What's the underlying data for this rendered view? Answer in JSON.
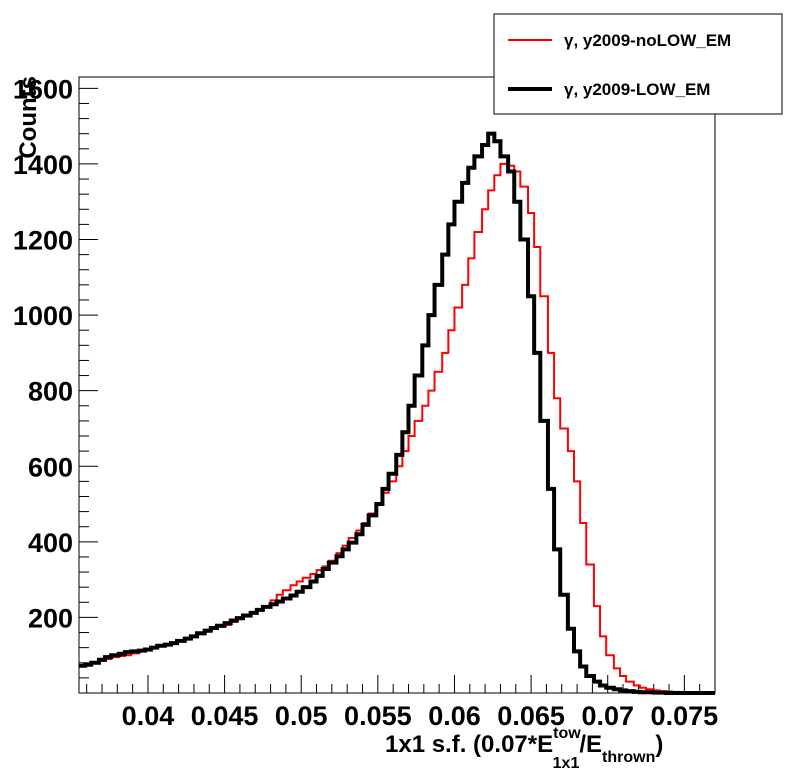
{
  "chart_data": {
    "type": "line",
    "step": true,
    "xlabel": "1x1 s.f. (0.07*E",
    "xlabel_sup": "tow",
    "xlabel_sub": "1x1",
    "xlabel_mid": "/E",
    "xlabel_sub2": "thrown",
    "xlabel_end": ")",
    "ylabel": "Counts",
    "xlim": [
      0.0355,
      0.077
    ],
    "ylim": [
      0,
      1630
    ],
    "xticks": [
      0.04,
      0.045,
      0.05,
      0.055,
      0.06,
      0.065,
      0.07,
      0.075
    ],
    "xtick_labels": [
      "0.04",
      "0.045",
      "0.05",
      "0.055",
      "0.06",
      "0.065",
      "0.07",
      "0.075"
    ],
    "yticks": [
      200,
      400,
      600,
      800,
      1000,
      1200,
      1400,
      1600
    ],
    "ytick_labels": [
      "200",
      "400",
      "600",
      "800",
      "1000",
      "1200",
      "1400",
      "1600"
    ],
    "legend": {
      "position": "top-right"
    },
    "series": [
      {
        "name": "γ, y2009-noLOW_EM",
        "color": "#ff0000",
        "x": [
          0.0355,
          0.0359,
          0.0364,
          0.0368,
          0.0372,
          0.0377,
          0.0381,
          0.0385,
          0.039,
          0.0394,
          0.0398,
          0.0402,
          0.0407,
          0.0411,
          0.0415,
          0.042,
          0.0424,
          0.0428,
          0.0433,
          0.0437,
          0.0441,
          0.0446,
          0.045,
          0.0454,
          0.0458,
          0.0463,
          0.0467,
          0.0471,
          0.0476,
          0.048,
          0.0484,
          0.0489,
          0.0493,
          0.0497,
          0.0502,
          0.0506,
          0.051,
          0.0514,
          0.0519,
          0.0523,
          0.0527,
          0.0532,
          0.0536,
          0.054,
          0.0545,
          0.0549,
          0.0553,
          0.0558,
          0.0562,
          0.0566,
          0.057,
          0.0575,
          0.0579,
          0.0583,
          0.0588,
          0.0592,
          0.0596,
          0.0601,
          0.0605,
          0.0609,
          0.0614,
          0.0618,
          0.0622,
          0.0626,
          0.0631,
          0.0635,
          0.0639,
          0.0644,
          0.0648,
          0.0652,
          0.0657,
          0.0661,
          0.0665,
          0.067,
          0.0674,
          0.0678,
          0.0682,
          0.0687,
          0.0691,
          0.0695,
          0.07,
          0.0704,
          0.0708,
          0.0713,
          0.0717,
          0.0721,
          0.0726,
          0.073,
          0.0734,
          0.0738,
          0.0743,
          0.0747,
          0.0751,
          0.0756,
          0.076,
          0.0764,
          0.0769
        ],
        "y": [
          70,
          72,
          78,
          85,
          90,
          95,
          98,
          100,
          105,
          110,
          112,
          118,
          125,
          128,
          132,
          138,
          145,
          150,
          155,
          162,
          170,
          175,
          180,
          188,
          195,
          202,
          210,
          220,
          230,
          245,
          260,
          272,
          285,
          295,
          305,
          315,
          325,
          335,
          350,
          370,
          390,
          410,
          430,
          450,
          475,
          500,
          530,
          560,
          600,
          640,
          680,
          720,
          760,
          800,
          850,
          900,
          960,
          1020,
          1080,
          1150,
          1220,
          1280,
          1330,
          1370,
          1400,
          1395,
          1380,
          1340,
          1270,
          1180,
          1050,
          900,
          780,
          700,
          640,
          560,
          450,
          340,
          230,
          150,
          100,
          65,
          45,
          30,
          20,
          14,
          10,
          7,
          5,
          4,
          3,
          2,
          2,
          1,
          1,
          0,
          0
        ]
      },
      {
        "name": "γ, y2009-LOW_EM",
        "color": "#000000",
        "x": [
          0.0355,
          0.0359,
          0.0364,
          0.0368,
          0.0372,
          0.0377,
          0.0381,
          0.0385,
          0.039,
          0.0394,
          0.0398,
          0.0402,
          0.0407,
          0.0411,
          0.0415,
          0.042,
          0.0424,
          0.0428,
          0.0433,
          0.0437,
          0.0441,
          0.0446,
          0.045,
          0.0454,
          0.0458,
          0.0463,
          0.0467,
          0.0471,
          0.0476,
          0.048,
          0.0484,
          0.0489,
          0.0493,
          0.0497,
          0.0502,
          0.0506,
          0.051,
          0.0514,
          0.0519,
          0.0523,
          0.0527,
          0.0532,
          0.0536,
          0.054,
          0.0545,
          0.0549,
          0.0553,
          0.0558,
          0.0562,
          0.0566,
          0.057,
          0.0575,
          0.0579,
          0.0583,
          0.0588,
          0.0592,
          0.0596,
          0.0601,
          0.0605,
          0.0609,
          0.0614,
          0.0618,
          0.0622,
          0.0626,
          0.0631,
          0.0635,
          0.0639,
          0.0644,
          0.0648,
          0.0652,
          0.0657,
          0.0661,
          0.0665,
          0.067,
          0.0674,
          0.0678,
          0.0682,
          0.0687,
          0.0691,
          0.0695,
          0.07,
          0.0704,
          0.0708,
          0.0713,
          0.0717,
          0.0721,
          0.0726,
          0.073,
          0.0734,
          0.0738,
          0.0743,
          0.0747,
          0.0751,
          0.0756,
          0.076,
          0.0764,
          0.0769
        ],
        "y": [
          72,
          75,
          80,
          88,
          95,
          100,
          104,
          108,
          110,
          112,
          115,
          120,
          125,
          128,
          132,
          138,
          144,
          150,
          158,
          165,
          172,
          178,
          185,
          192,
          198,
          205,
          212,
          220,
          228,
          235,
          242,
          250,
          258,
          268,
          280,
          295,
          310,
          328,
          345,
          362,
          380,
          398,
          420,
          445,
          470,
          500,
          540,
          580,
          630,
          690,
          760,
          840,
          920,
          1000,
          1080,
          1160,
          1240,
          1300,
          1350,
          1390,
          1420,
          1450,
          1480,
          1460,
          1420,
          1380,
          1300,
          1200,
          1050,
          900,
          720,
          540,
          380,
          260,
          170,
          110,
          70,
          45,
          30,
          20,
          14,
          10,
          7,
          5,
          3,
          2,
          2,
          1,
          1,
          0,
          0,
          0,
          0,
          0,
          0,
          0,
          0
        ]
      }
    ]
  }
}
